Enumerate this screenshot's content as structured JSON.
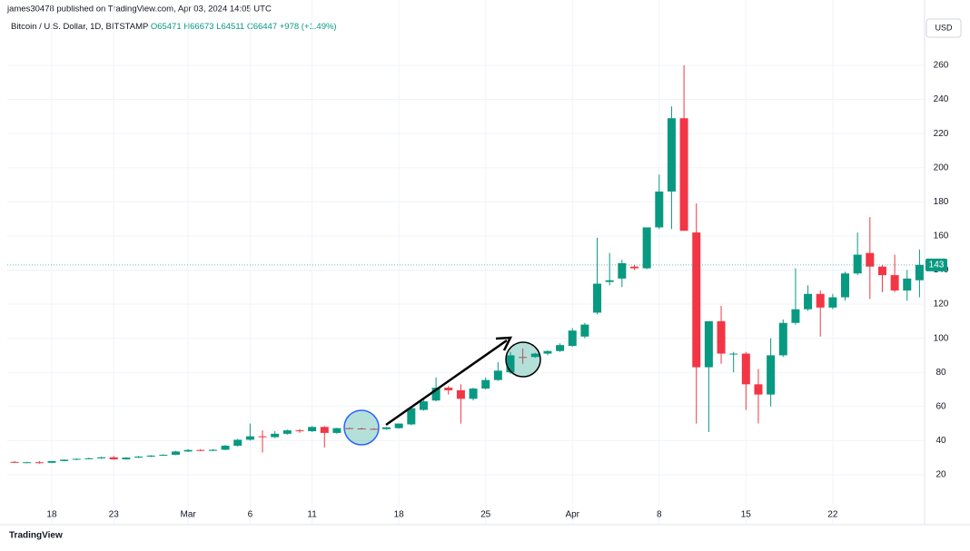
{
  "header": {
    "publisher": "james30478 published on TradingView.com, Apr 03, 2024 14:05 UTC",
    "symbol": "Bitcoin / U.S. Dollar, 1D, BITSTAMP",
    "ohlc": [
      "O65471",
      "H66673",
      "L64511",
      "C66447"
    ],
    "change": "+978 (+1.49%)",
    "currency": "USD",
    "brand": "TradingView"
  },
  "chart_data": {
    "type": "candlestick",
    "x": [
      0,
      1,
      2,
      3,
      4,
      5,
      6,
      7,
      8,
      9,
      10,
      11,
      12,
      13,
      14,
      15,
      16,
      17,
      18,
      19,
      20,
      21,
      22,
      23,
      24,
      25,
      26,
      27,
      28,
      29,
      30,
      31,
      32,
      33,
      34,
      35,
      36,
      37,
      38,
      39,
      40,
      41,
      42,
      43,
      44,
      45,
      46,
      47,
      48,
      49,
      50,
      51,
      52,
      53,
      54,
      55,
      56,
      57,
      58,
      59,
      60,
      61,
      62,
      63,
      64,
      65,
      66,
      67,
      68,
      69,
      70,
      71,
      72,
      73
    ],
    "open": [
      27.5,
      27,
      27.3,
      27,
      28,
      28.8,
      29.3,
      29.6,
      30.2,
      29,
      30,
      30.6,
      31.2,
      31.7,
      33.6,
      34.5,
      34,
      34.6,
      37,
      40.5,
      42.5,
      42,
      44,
      46,
      45.5,
      48,
      44.5,
      47.3,
      47.1,
      46.9,
      46.7,
      47.3,
      49.5,
      58,
      63.5,
      71,
      69.5,
      64.5,
      70.5,
      75.5,
      80,
      89,
      89,
      91,
      92.5,
      95.5,
      101,
      115,
      133,
      135,
      142,
      141,
      165,
      186,
      229,
      162,
      83,
      110,
      90.5,
      91,
      73,
      67,
      90,
      109,
      117,
      126,
      118,
      124,
      138,
      150,
      142,
      137,
      128,
      134
    ],
    "high": [
      28,
      27.6,
      28,
      28,
      29,
      29.5,
      30,
      30.5,
      31,
      30.3,
      31,
      31.5,
      32,
      34,
      35,
      35,
      35,
      37.5,
      41,
      50,
      46,
      45.5,
      46.5,
      46.8,
      48.5,
      48.5,
      47.5,
      47.6,
      47.5,
      47.3,
      48,
      50,
      60,
      64,
      77,
      72,
      73,
      71,
      77,
      86,
      92,
      94,
      91.5,
      93,
      97,
      106,
      109,
      159,
      150,
      146,
      143,
      165,
      196,
      236,
      260,
      179,
      110,
      119,
      92,
      92,
      82,
      100,
      111,
      141,
      131,
      128,
      126,
      139,
      162,
      171,
      143,
      149,
      140,
      152
    ],
    "low": [
      27,
      26.8,
      26.5,
      26.8,
      27.8,
      28.5,
      29,
      29.3,
      28.8,
      28.8,
      29.8,
      30.3,
      31,
      31.5,
      33.3,
      33.8,
      33.8,
      34.4,
      36.5,
      40,
      33,
      41.5,
      43.5,
      44.5,
      45,
      36,
      44,
      47,
      46.8,
      46.5,
      46.3,
      47,
      49,
      57.5,
      63,
      67,
      50,
      63.5,
      70,
      75,
      79,
      85,
      88.5,
      90,
      92,
      95,
      100,
      114,
      131,
      130,
      140,
      140.5,
      164,
      164,
      164,
      50,
      45,
      85,
      80,
      58,
      50,
      60,
      89,
      108,
      116,
      101,
      117,
      122,
      137,
      123,
      127,
      127,
      122,
      124
    ],
    "close": [
      27,
      27.3,
      26.8,
      28,
      28.8,
      29.3,
      29.6,
      30.2,
      29,
      30,
      30.6,
      31.2,
      31.7,
      33.6,
      34.5,
      34,
      34.6,
      37,
      40.5,
      42.5,
      42,
      44,
      46,
      45.5,
      48,
      44.5,
      47.3,
      47.1,
      46.9,
      46.7,
      47.8,
      50,
      59,
      63,
      71,
      69.5,
      64.5,
      70.5,
      75.5,
      81,
      90,
      88.5,
      91,
      92.5,
      96,
      104.5,
      108,
      132,
      134,
      144,
      141,
      165,
      186,
      229,
      163,
      83,
      110,
      91,
      91,
      73,
      67,
      90,
      109,
      117,
      126,
      118,
      124,
      138,
      149,
      142,
      137,
      128,
      135,
      143
    ],
    "up_color": "#089981",
    "down_color": "#f23645",
    "xlim": [
      -0.59,
      73.41
    ],
    "xticks": [
      {
        "value": 3,
        "label": "18"
      },
      {
        "value": 8,
        "label": "23"
      },
      {
        "value": 14,
        "label": "Mar"
      },
      {
        "value": 19,
        "label": "6"
      },
      {
        "value": 24,
        "label": "11"
      },
      {
        "value": 31,
        "label": "18"
      },
      {
        "value": 38,
        "label": "25"
      },
      {
        "value": 45,
        "label": "Apr"
      },
      {
        "value": 52,
        "label": "8"
      },
      {
        "value": 59,
        "label": "15"
      },
      {
        "value": 66,
        "label": "22"
      }
    ],
    "ylim": [
      -9.3,
      286.6
    ],
    "yticks": [
      20,
      40,
      60,
      80,
      100,
      120,
      140,
      160,
      180,
      200,
      220,
      240,
      260
    ],
    "grid": true,
    "last_value": 143
  }
}
